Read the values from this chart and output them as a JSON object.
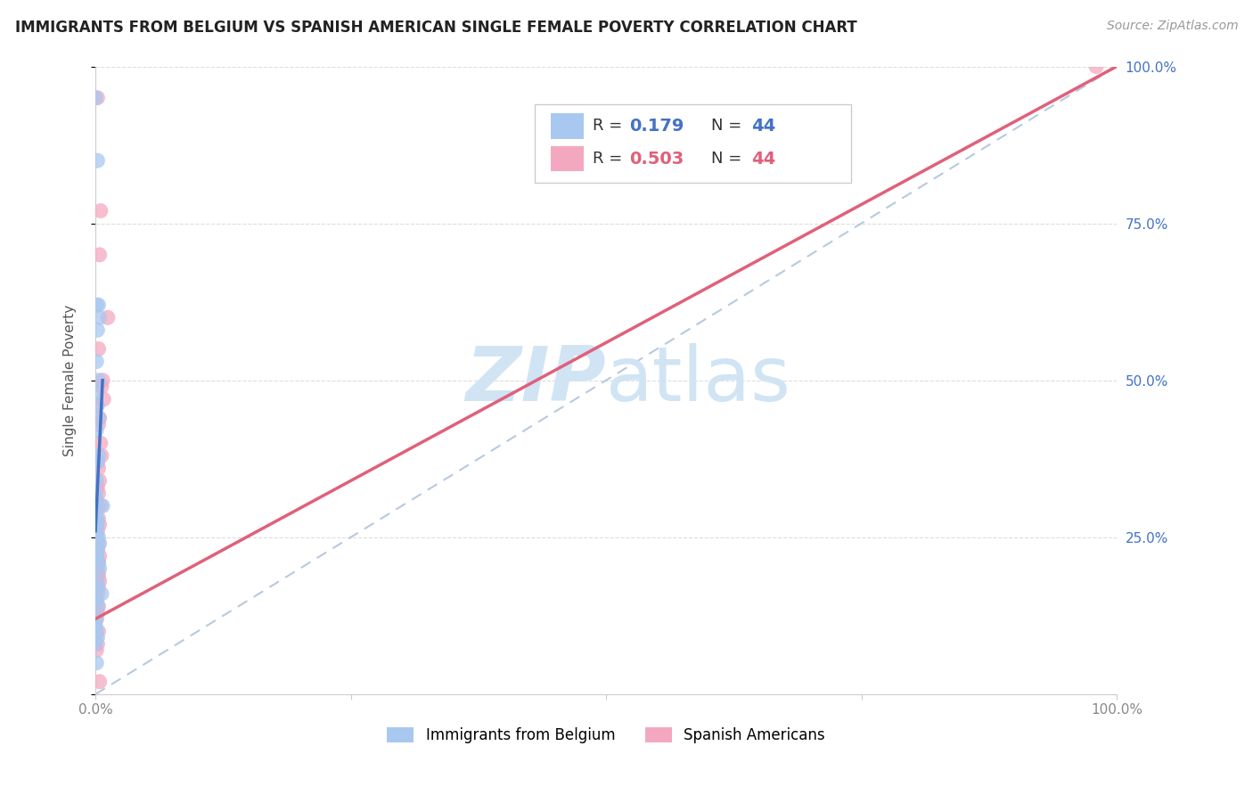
{
  "title": "IMMIGRANTS FROM BELGIUM VS SPANISH AMERICAN SINGLE FEMALE POVERTY CORRELATION CHART",
  "source": "Source: ZipAtlas.com",
  "ylabel": "Single Female Poverty",
  "xlim": [
    0,
    1.0
  ],
  "ylim": [
    0,
    1.0
  ],
  "xticks": [
    0.0,
    0.25,
    0.5,
    0.75,
    1.0
  ],
  "xticklabels": [
    "0.0%",
    "",
    "",
    "",
    "100.0%"
  ],
  "yticks": [
    0.0,
    0.25,
    0.5,
    0.75,
    1.0
  ],
  "blue_R": 0.179,
  "pink_R": 0.503,
  "N": 44,
  "blue_color": "#A8C8F0",
  "pink_color": "#F4A8C0",
  "blue_line_color": "#4472C4",
  "pink_line_color": "#E0607A",
  "ref_line_color": "#B0C4DC",
  "watermark_color": "#D0E4F4",
  "legend_label_blue": "Immigrants from Belgium",
  "legend_label_pink": "Spanish Americans",
  "blue_x": [
    0.0,
    0.002,
    0.003,
    0.001,
    0.004,
    0.002,
    0.001,
    0.003,
    0.001,
    0.002,
    0.003,
    0.001,
    0.003,
    0.002,
    0.001,
    0.0,
    0.0,
    0.0,
    0.0,
    0.001,
    0.002,
    0.001,
    0.0,
    0.001,
    0.003,
    0.004,
    0.002,
    0.001,
    0.001,
    0.003,
    0.004,
    0.002,
    0.001,
    0.006,
    0.001,
    0.002,
    0.001,
    0.0,
    0.001,
    0.007,
    0.002,
    0.0,
    0.001,
    0.001
  ],
  "blue_y": [
    0.95,
    0.85,
    0.62,
    0.62,
    0.6,
    0.58,
    0.53,
    0.5,
    0.48,
    0.46,
    0.44,
    0.42,
    0.38,
    0.37,
    0.34,
    0.32,
    0.31,
    0.3,
    0.29,
    0.28,
    0.27,
    0.27,
    0.26,
    0.25,
    0.25,
    0.24,
    0.23,
    0.22,
    0.22,
    0.21,
    0.2,
    0.18,
    0.17,
    0.16,
    0.15,
    0.14,
    0.12,
    0.11,
    0.1,
    0.3,
    0.09,
    0.08,
    0.05,
    0.28
  ],
  "pink_x": [
    0.002,
    0.005,
    0.004,
    0.012,
    0.003,
    0.007,
    0.006,
    0.008,
    0.001,
    0.004,
    0.003,
    0.005,
    0.006,
    0.002,
    0.003,
    0.004,
    0.002,
    0.003,
    0.001,
    0.002,
    0.005,
    0.003,
    0.004,
    0.002,
    0.003,
    0.002,
    0.001,
    0.004,
    0.003,
    0.002,
    0.002,
    0.003,
    0.004,
    0.003,
    0.002,
    0.001,
    0.003,
    0.002,
    0.001,
    0.003,
    0.002,
    0.001,
    0.98,
    0.004
  ],
  "pink_y": [
    0.95,
    0.77,
    0.7,
    0.6,
    0.55,
    0.5,
    0.49,
    0.47,
    0.46,
    0.44,
    0.43,
    0.4,
    0.38,
    0.37,
    0.36,
    0.34,
    0.33,
    0.32,
    0.31,
    0.3,
    0.3,
    0.28,
    0.27,
    0.26,
    0.24,
    0.23,
    0.22,
    0.22,
    0.21,
    0.2,
    0.19,
    0.19,
    0.18,
    0.17,
    0.16,
    0.15,
    0.14,
    0.13,
    0.12,
    0.1,
    0.08,
    0.07,
    1.0,
    0.02
  ],
  "blue_line_x": [
    0.0,
    0.007
  ],
  "blue_line_y": [
    0.26,
    0.5
  ],
  "pink_line_x": [
    0.0,
    1.0
  ],
  "pink_line_y": [
    0.12,
    1.0
  ],
  "grid_color": "#DDDDDD",
  "tick_color": "#888888",
  "right_tick_color": "#4472C4"
}
